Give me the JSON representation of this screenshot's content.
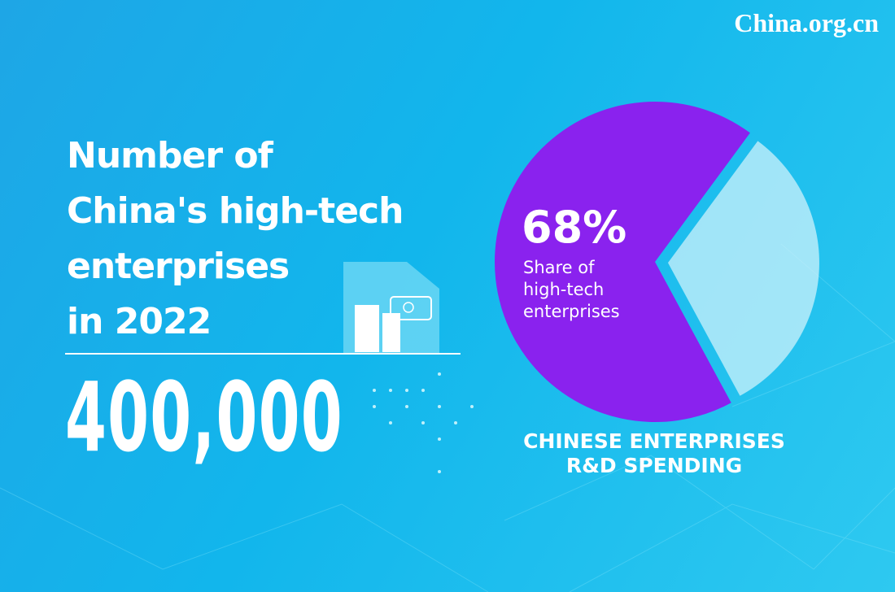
{
  "watermark": "China.org.cn",
  "headline": {
    "title_lines": [
      "Number of",
      "China's high-tech",
      "enterprises",
      "in 2022"
    ],
    "figure": "400,000"
  },
  "chart_data": {
    "type": "pie",
    "title_lines": [
      "CHINESE ENTERPRISES",
      "R&D SPENDING"
    ],
    "categories": [
      [
        "Share of",
        "high-tech",
        "enterprises"
      ],
      null
    ],
    "values": [
      68,
      32
    ],
    "value_labels": [
      "68%",
      null
    ],
    "colors": [
      "#8a22ee",
      "#cdf1fb"
    ]
  }
}
